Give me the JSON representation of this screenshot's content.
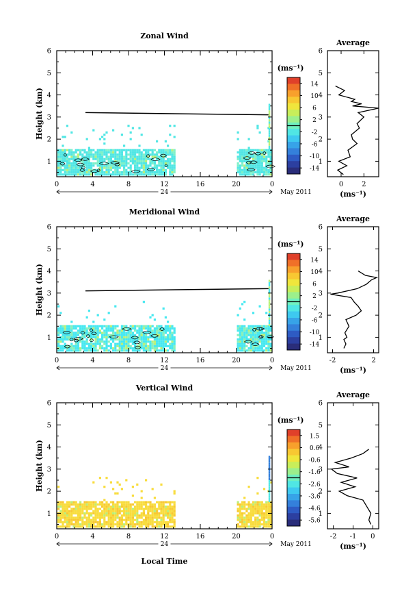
{
  "panels": [
    {
      "id": "zonal",
      "title": "Zonal Wind",
      "xticks": [
        "0",
        "4",
        "8",
        "12",
        "16",
        "20",
        "0"
      ],
      "yticks": [
        "1",
        "2",
        "3",
        "4",
        "5",
        "6"
      ],
      "ylabel": "Height (km)",
      "day_label": "24",
      "month_label": "May 2011",
      "cbar_unit": "(ms⁻¹)",
      "cbar_ticks": [
        "14",
        "10",
        "6",
        "2",
        "-2",
        "-6",
        "-10",
        "-14"
      ],
      "avg_title": "Average",
      "avg_xticks": [
        "0",
        "2"
      ],
      "avg_yticks": [
        "1",
        "2",
        "3",
        "4",
        "5",
        "6"
      ],
      "avg_unit": "(ms⁻¹)",
      "palette": "zonal"
    },
    {
      "id": "meridional",
      "title": "Meridional Wind",
      "xticks": [
        "0",
        "4",
        "8",
        "12",
        "16",
        "20",
        "0"
      ],
      "yticks": [
        "1",
        "2",
        "3",
        "4",
        "5",
        "6"
      ],
      "ylabel": "Height (km)",
      "day_label": "24",
      "month_label": "May 2011",
      "cbar_unit": "(ms⁻¹)",
      "cbar_ticks": [
        "14",
        "10",
        "6",
        "2",
        "-2",
        "-6",
        "-10",
        "-14"
      ],
      "avg_title": "Average",
      "avg_xticks": [
        "-2",
        "2"
      ],
      "avg_yticks": [
        "1",
        "2",
        "3",
        "4",
        "5",
        "6"
      ],
      "avg_unit": "(ms⁻¹)",
      "palette": "meridional"
    },
    {
      "id": "vertical",
      "title": "Vertical Wind",
      "xticks": [
        "0",
        "4",
        "8",
        "12",
        "16",
        "20",
        "0"
      ],
      "yticks": [
        "1",
        "2",
        "3",
        "4",
        "5",
        "6"
      ],
      "ylabel": "Height (km)",
      "day_label": "24",
      "month_label": "May 2011",
      "cbar_unit": "(ms⁻¹)",
      "cbar_ticks": [
        "1.5",
        "0.6",
        "-0.6",
        "-1.6",
        "-2.6",
        "-3.6",
        "-4.6",
        "-5.6"
      ],
      "avg_title": "Average",
      "avg_xticks": [
        "-2",
        "-1",
        "0"
      ],
      "avg_yticks": [
        "1",
        "2",
        "3",
        "4",
        "5",
        "6"
      ],
      "avg_unit": "(ms⁻¹)",
      "palette": "vertical"
    }
  ],
  "xlabel": "Local Time",
  "colors": {
    "jet": [
      "#2a2d7a",
      "#2c3fa0",
      "#2e5bc4",
      "#3480db",
      "#37a3e8",
      "#3ec9f0",
      "#50e6e4",
      "#6ff0c0",
      "#9cf08c",
      "#c8ee5a",
      "#f0e63c",
      "#f8c832",
      "#f8a02c",
      "#f07028",
      "#e0402a"
    ],
    "zonal_main": "#50e6e4",
    "zonal_alt": "#7ff0c8",
    "meridional_main": "#46e8f0",
    "meridional_alt": "#8af0b8",
    "vertical_main": "#f8dc3c",
    "vertical_alt": "#f8c832",
    "green_accent": "#b8f07a"
  },
  "chart_data": [
    {
      "type": "heatmap",
      "title": "Zonal Wind",
      "xlabel": "",
      "ylabel": "Height (km)",
      "xlim": [
        0,
        24
      ],
      "ylim": [
        0.3,
        6
      ],
      "colorbar_range": [
        -16,
        16
      ],
      "data_segments": [
        [
          0,
          13
        ],
        [
          20,
          24
        ]
      ],
      "typical_value_ms": -1,
      "averaged_profile": {
        "xlabel": "(ms⁻¹)",
        "xlim": [
          -1.2,
          3.3
        ],
        "ylim": [
          0.3,
          6
        ],
        "height_km": [
          0.4,
          0.6,
          0.8,
          1.0,
          1.2,
          1.5,
          1.8,
          2.0,
          2.2,
          2.5,
          2.7,
          3.0,
          3.2,
          3.4,
          3.5,
          3.6,
          3.7,
          3.8,
          4.0,
          4.2,
          4.4
        ],
        "speed_ms": [
          0.2,
          -0.3,
          0.5,
          -0.2,
          0.8,
          0.6,
          1.4,
          1.0,
          0.9,
          1.6,
          1.4,
          2.0,
          1.5,
          3.3,
          1.0,
          1.8,
          0.9,
          1.2,
          -0.2,
          0.3,
          -0.5
        ]
      }
    },
    {
      "type": "heatmap",
      "title": "Meridional Wind",
      "xlabel": "",
      "ylabel": "Height (km)",
      "xlim": [
        0,
        24
      ],
      "ylim": [
        0.3,
        6
      ],
      "colorbar_range": [
        -16,
        16
      ],
      "data_segments": [
        [
          0,
          13
        ],
        [
          20,
          24
        ]
      ],
      "typical_value_ms": -2,
      "averaged_profile": {
        "xlabel": "(ms⁻¹)",
        "xlim": [
          -2.5,
          2.5
        ],
        "ylim": [
          0.3,
          6
        ],
        "height_km": [
          0.5,
          0.7,
          0.9,
          1.0,
          1.2,
          1.5,
          1.8,
          2.0,
          2.2,
          2.4,
          2.6,
          2.8,
          2.95,
          3.0,
          3.2,
          3.4,
          3.6,
          3.7,
          3.8,
          4.0
        ],
        "speed_ms": [
          -0.9,
          -0.7,
          -0.9,
          -0.6,
          -0.8,
          -0.4,
          -0.7,
          0.3,
          0.8,
          0.5,
          0.1,
          -0.2,
          -2.2,
          -1.5,
          0.4,
          1.3,
          1.8,
          2.3,
          1.2,
          0.5
        ]
      }
    },
    {
      "type": "heatmap",
      "title": "Vertical Wind",
      "xlabel": "Local Time",
      "ylabel": "Height (km)",
      "xlim": [
        0,
        24
      ],
      "ylim": [
        0.3,
        6
      ],
      "colorbar_range": [
        -6,
        2
      ],
      "data_segments": [
        [
          0,
          13
        ],
        [
          20,
          24
        ]
      ],
      "typical_value_ms": 0,
      "averaged_profile": {
        "xlabel": "(ms⁻¹)",
        "xlim": [
          -2.3,
          0.3
        ],
        "ylim": [
          0.3,
          6
        ],
        "height_km": [
          0.5,
          0.7,
          1.0,
          1.3,
          1.6,
          1.8,
          2.0,
          2.2,
          2.4,
          2.6,
          2.8,
          3.0,
          3.1,
          3.3,
          3.5,
          3.7,
          3.9
        ],
        "speed_ms": [
          -0.1,
          -0.2,
          -0.1,
          -0.3,
          -0.5,
          -1.3,
          -1.7,
          -0.9,
          -1.6,
          -0.8,
          -1.8,
          -2.1,
          -1.2,
          -1.9,
          -1.1,
          -0.5,
          -0.2
        ]
      }
    }
  ]
}
